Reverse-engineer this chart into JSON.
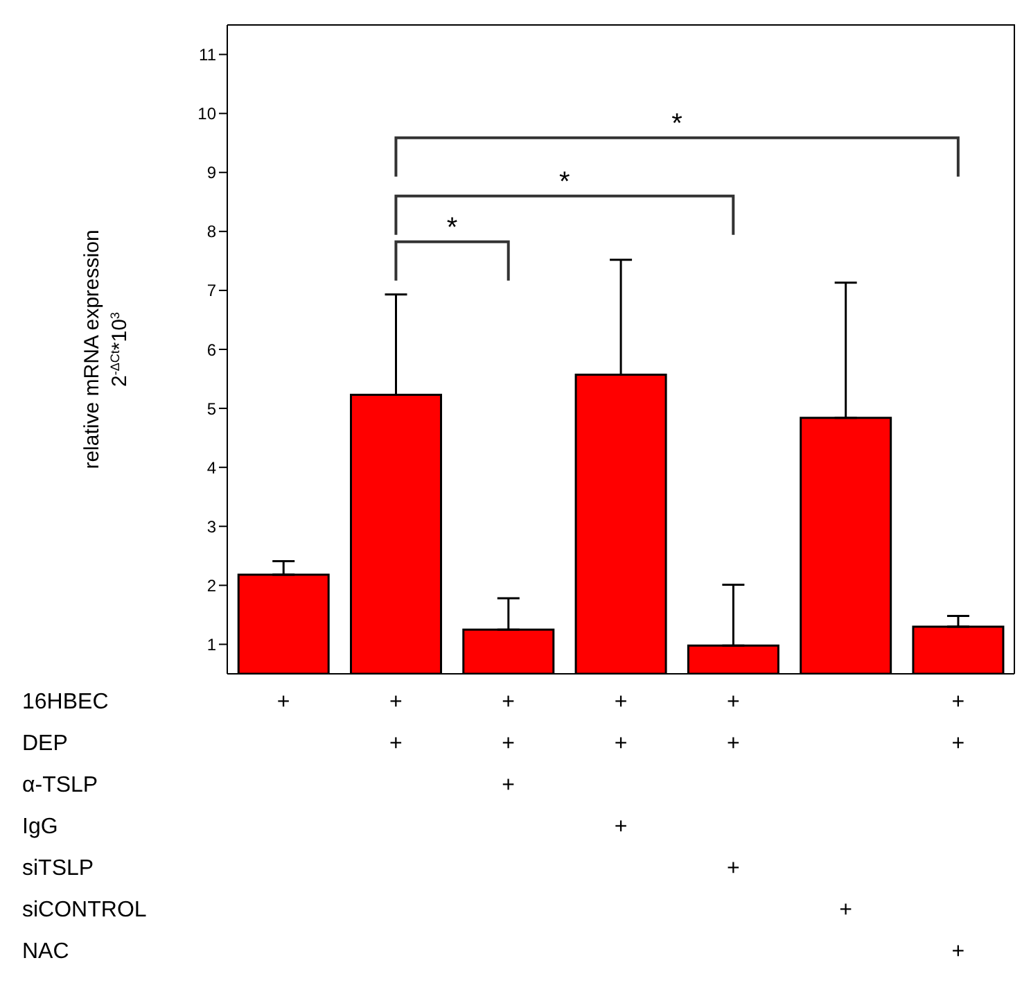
{
  "chart_data": {
    "type": "bar",
    "ylabel": "relative mRNA expression\n2$^{-ΔCt}$*10$^{3}$",
    "xlabel": "16HBEC\nDEP\nα-TSLP\nIgG\nsiTSLP\nsiCONTROL\nNAC",
    "categories": [
      null,
      null,
      null,
      null,
      null,
      null,
      null
    ],
    "values": [
      2.18,
      5.23,
      1.25,
      5.57,
      0.98,
      4.84,
      1.3
    ],
    "errors": [
      [
        2.18,
        2.41
      ],
      [
        5.23,
        6.93
      ],
      [
        1.25,
        1.78
      ],
      [
        5.57,
        7.52
      ],
      [
        0.98,
        2.01
      ],
      [
        4.84,
        7.13
      ],
      [
        1.3,
        1.48
      ]
    ],
    "color": "#ff0000",
    "ylim": [
      0.5,
      11.5
    ],
    "yticks": [
      1,
      2,
      3,
      4,
      5,
      6,
      7,
      8,
      9,
      10,
      11
    ],
    "grid": false,
    "annotations": [
      "*",
      "*",
      "*",
      "+\n\n\n\n\n\n",
      "+\n+\n\n\n\n\n",
      "+\n+\n+\n\n\n\n",
      "+\n+\n\n+\n\n\n",
      "+\n+\n\n\n+\n\n",
      "\n\n\n\n\n+\n",
      "+\n+\n\n\n\n\n+"
    ]
  }
}
